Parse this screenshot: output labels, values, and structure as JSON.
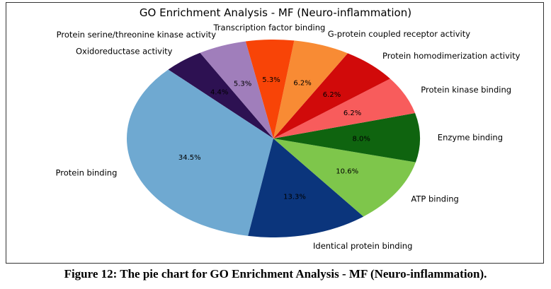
{
  "chart_data": {
    "type": "pie",
    "title": "GO Enrichment Analysis - MF (Neuro-inflammation)",
    "start_angle_deg": 120,
    "direction": "counterclockwise",
    "legend": "none",
    "slices": [
      {
        "label": "Oxidoreductase activity",
        "value": 4.4,
        "pct_label": "4.4%",
        "color": "#2d1152"
      },
      {
        "label": "Protein binding",
        "value": 34.5,
        "pct_label": "34.5%",
        "color": "#6fa9d1"
      },
      {
        "label": "Identical protein binding",
        "value": 13.3,
        "pct_label": "13.3%",
        "color": "#0b357c"
      },
      {
        "label": "ATP binding",
        "value": 10.6,
        "pct_label": "10.6%",
        "color": "#7ec64b"
      },
      {
        "label": "Enzyme binding",
        "value": 8.0,
        "pct_label": "8.0%",
        "color": "#0f640f"
      },
      {
        "label": "Protein kinase binding",
        "value": 6.2,
        "pct_label": "6.2%",
        "color": "#f85c5c"
      },
      {
        "label": "Protein homodimerization activity",
        "value": 6.2,
        "pct_label": "6.2%",
        "color": "#d10a0a"
      },
      {
        "label": "G-protein coupled receptor activity",
        "value": 6.2,
        "pct_label": "6.2%",
        "color": "#f88b34"
      },
      {
        "label": "Transcription factor binding",
        "value": 5.3,
        "pct_label": "5.3%",
        "color": "#f84407"
      },
      {
        "label": "Protein serine/threonine kinase activity",
        "value": 5.3,
        "pct_label": "5.3%",
        "color": "#a07ebb"
      }
    ]
  },
  "caption": "Figure 12: The pie chart for GO Enrichment Analysis - MF (Neuro-inflammation)."
}
